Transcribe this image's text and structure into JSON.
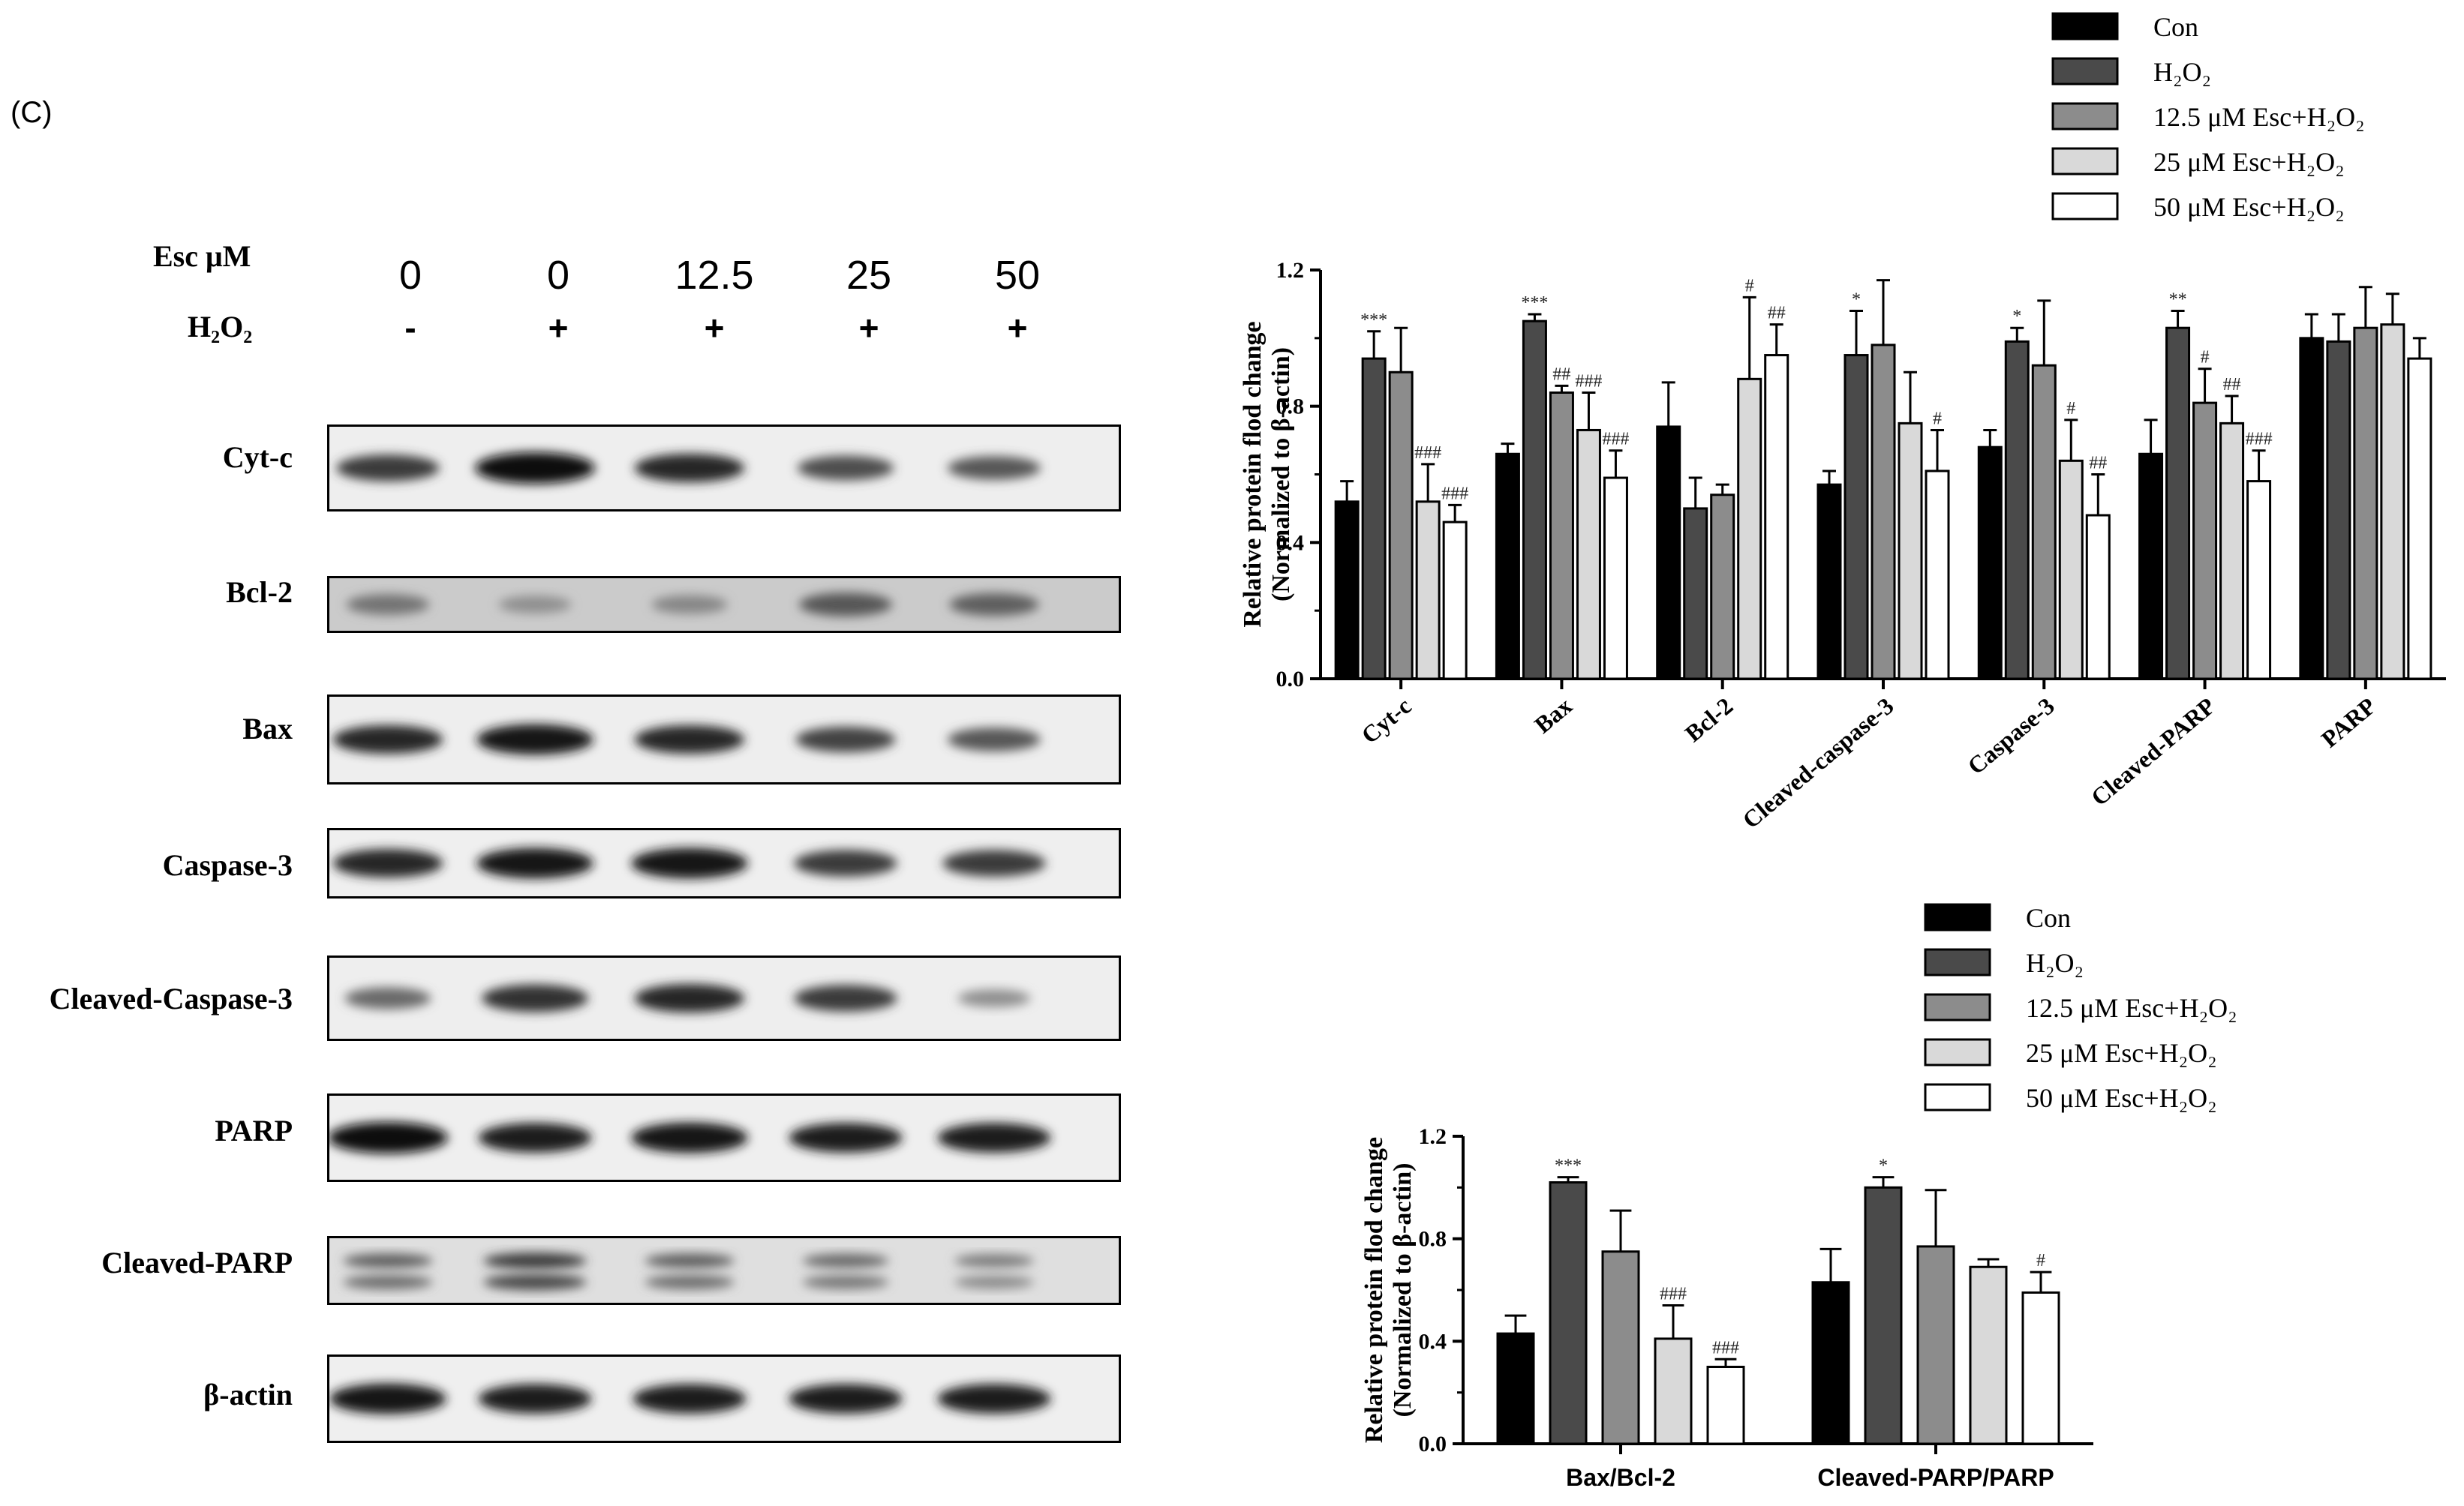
{
  "panel_label": "(C)",
  "western_blot": {
    "header_rows": [
      {
        "label": "Esc μM",
        "values": [
          "0",
          "0",
          "12.5",
          "25",
          "50"
        ]
      },
      {
        "label": "H₂O₂",
        "values": [
          "-",
          "+",
          "+",
          "+",
          "+"
        ]
      }
    ],
    "rows": [
      {
        "label": "Cyt-c",
        "band_intensity": [
          0.75,
          1.0,
          0.85,
          0.65,
          0.6
        ],
        "band_position": "middle",
        "background": 0.06
      },
      {
        "label": "Bcl-2",
        "band_intensity": [
          0.45,
          0.3,
          0.35,
          0.6,
          0.55
        ],
        "band_position": "middle",
        "background": 0.35
      },
      {
        "label": "Bax",
        "band_intensity": [
          0.85,
          0.95,
          0.85,
          0.7,
          0.6
        ],
        "band_position": "middle",
        "background": 0.06
      },
      {
        "label": "Caspase-3",
        "band_intensity": [
          0.85,
          0.95,
          0.95,
          0.75,
          0.75
        ],
        "band_position": "middle",
        "background": 0.05
      },
      {
        "label": "Cleaved-Caspase-3",
        "band_intensity": [
          0.5,
          0.8,
          0.85,
          0.75,
          0.3
        ],
        "band_position": "middle",
        "background": 0.06
      },
      {
        "label": "PARP",
        "band_intensity": [
          1.0,
          0.9,
          0.95,
          0.9,
          0.9
        ],
        "band_position": "middle",
        "background": 0.05
      },
      {
        "label": "Cleaved-PARP",
        "band_intensity": [
          0.55,
          0.75,
          0.55,
          0.5,
          0.4
        ],
        "band_position": "double",
        "background": 0.18
      },
      {
        "label": "β-actin",
        "band_intensity": [
          0.95,
          0.9,
          0.9,
          0.9,
          0.9
        ],
        "band_position": "middle",
        "background": 0.05
      }
    ]
  },
  "legend": {
    "entries": [
      "Con",
      "H₂O₂",
      "12.5 μM Esc+H₂O₂",
      "25 μM Esc+H₂O₂",
      "50 μM Esc+H₂O₂"
    ],
    "colors": [
      "#000000",
      "#4a4a4a",
      "#8c8c8c",
      "#d9d9d9",
      "#ffffff"
    ]
  },
  "chart_data": [
    {
      "type": "bar",
      "ylabel_line1": "Relative protein flod change",
      "ylabel_line2": "(Normalized to β-actin)",
      "ylim": [
        0,
        1.2
      ],
      "yticks": [
        "0.0",
        "0.4",
        "0.8",
        "1.2"
      ],
      "categories": [
        "Cyt-c",
        "Bax",
        "Bcl-2",
        "Cleaved-caspase-3",
        "Caspase-3",
        "Cleaved-PARP",
        "PARP"
      ],
      "series": [
        {
          "name": "Con",
          "values": [
            0.52,
            0.66,
            0.74,
            0.57,
            0.68,
            0.66,
            1.0
          ],
          "errors": [
            0.06,
            0.03,
            0.13,
            0.04,
            0.05,
            0.1,
            0.07
          ]
        },
        {
          "name": "H₂O₂",
          "values": [
            0.94,
            1.05,
            0.5,
            0.95,
            0.99,
            1.03,
            0.99
          ],
          "errors": [
            0.08,
            0.02,
            0.09,
            0.13,
            0.04,
            0.05,
            0.08
          ]
        },
        {
          "name": "12.5 μM Esc+H₂O₂",
          "values": [
            0.9,
            0.84,
            0.54,
            0.98,
            0.92,
            0.81,
            1.03
          ],
          "errors": [
            0.13,
            0.02,
            0.03,
            0.19,
            0.19,
            0.1,
            0.12
          ]
        },
        {
          "name": "25 μM Esc+H₂O₂",
          "values": [
            0.52,
            0.73,
            0.88,
            0.75,
            0.64,
            0.75,
            1.04
          ],
          "errors": [
            0.11,
            0.11,
            0.24,
            0.15,
            0.12,
            0.08,
            0.09
          ]
        },
        {
          "name": "50 μM Esc+H₂O₂",
          "values": [
            0.46,
            0.59,
            0.95,
            0.61,
            0.48,
            0.58,
            0.94
          ],
          "errors": [
            0.05,
            0.08,
            0.09,
            0.12,
            0.12,
            0.09,
            0.06
          ]
        }
      ],
      "significance": [
        [
          "",
          "***",
          "",
          "###",
          "###"
        ],
        [
          "",
          "***",
          "##",
          "###",
          "###"
        ],
        [
          "",
          "",
          "",
          "#",
          "##"
        ],
        [
          "",
          "*",
          "",
          "",
          "#"
        ],
        [
          "",
          "*",
          "",
          "#",
          "##"
        ],
        [
          "",
          "**",
          "#",
          "##",
          "###"
        ],
        [
          "",
          "",
          "",
          "",
          ""
        ]
      ],
      "legend_position": "top-right"
    },
    {
      "type": "bar",
      "ylabel_line1": "Relative protein flod change",
      "ylabel_line2": "(Normalized to β-actin)",
      "ylim": [
        0,
        1.2
      ],
      "yticks": [
        "0.0",
        "0.4",
        "0.8",
        "1.2"
      ],
      "categories": [
        "Bax/Bcl-2",
        "Cleaved-PARP/PARP"
      ],
      "series": [
        {
          "name": "Con",
          "values": [
            0.43,
            0.63
          ],
          "errors": [
            0.07,
            0.13
          ]
        },
        {
          "name": "H₂O₂",
          "values": [
            1.02,
            1.0
          ],
          "errors": [
            0.02,
            0.04
          ]
        },
        {
          "name": "12.5 μM Esc+H₂O₂",
          "values": [
            0.75,
            0.77
          ],
          "errors": [
            0.16,
            0.22
          ]
        },
        {
          "name": "25 μM Esc+H₂O₂",
          "values": [
            0.41,
            0.69
          ],
          "errors": [
            0.13,
            0.03
          ]
        },
        {
          "name": "50 μM Esc+H₂O₂",
          "values": [
            0.3,
            0.59
          ],
          "errors": [
            0.03,
            0.08
          ]
        }
      ],
      "significance": [
        [
          "",
          "***",
          "",
          "###",
          "###"
        ],
        [
          "",
          "*",
          "",
          "",
          "#"
        ]
      ],
      "legend_position": "top-right"
    }
  ]
}
